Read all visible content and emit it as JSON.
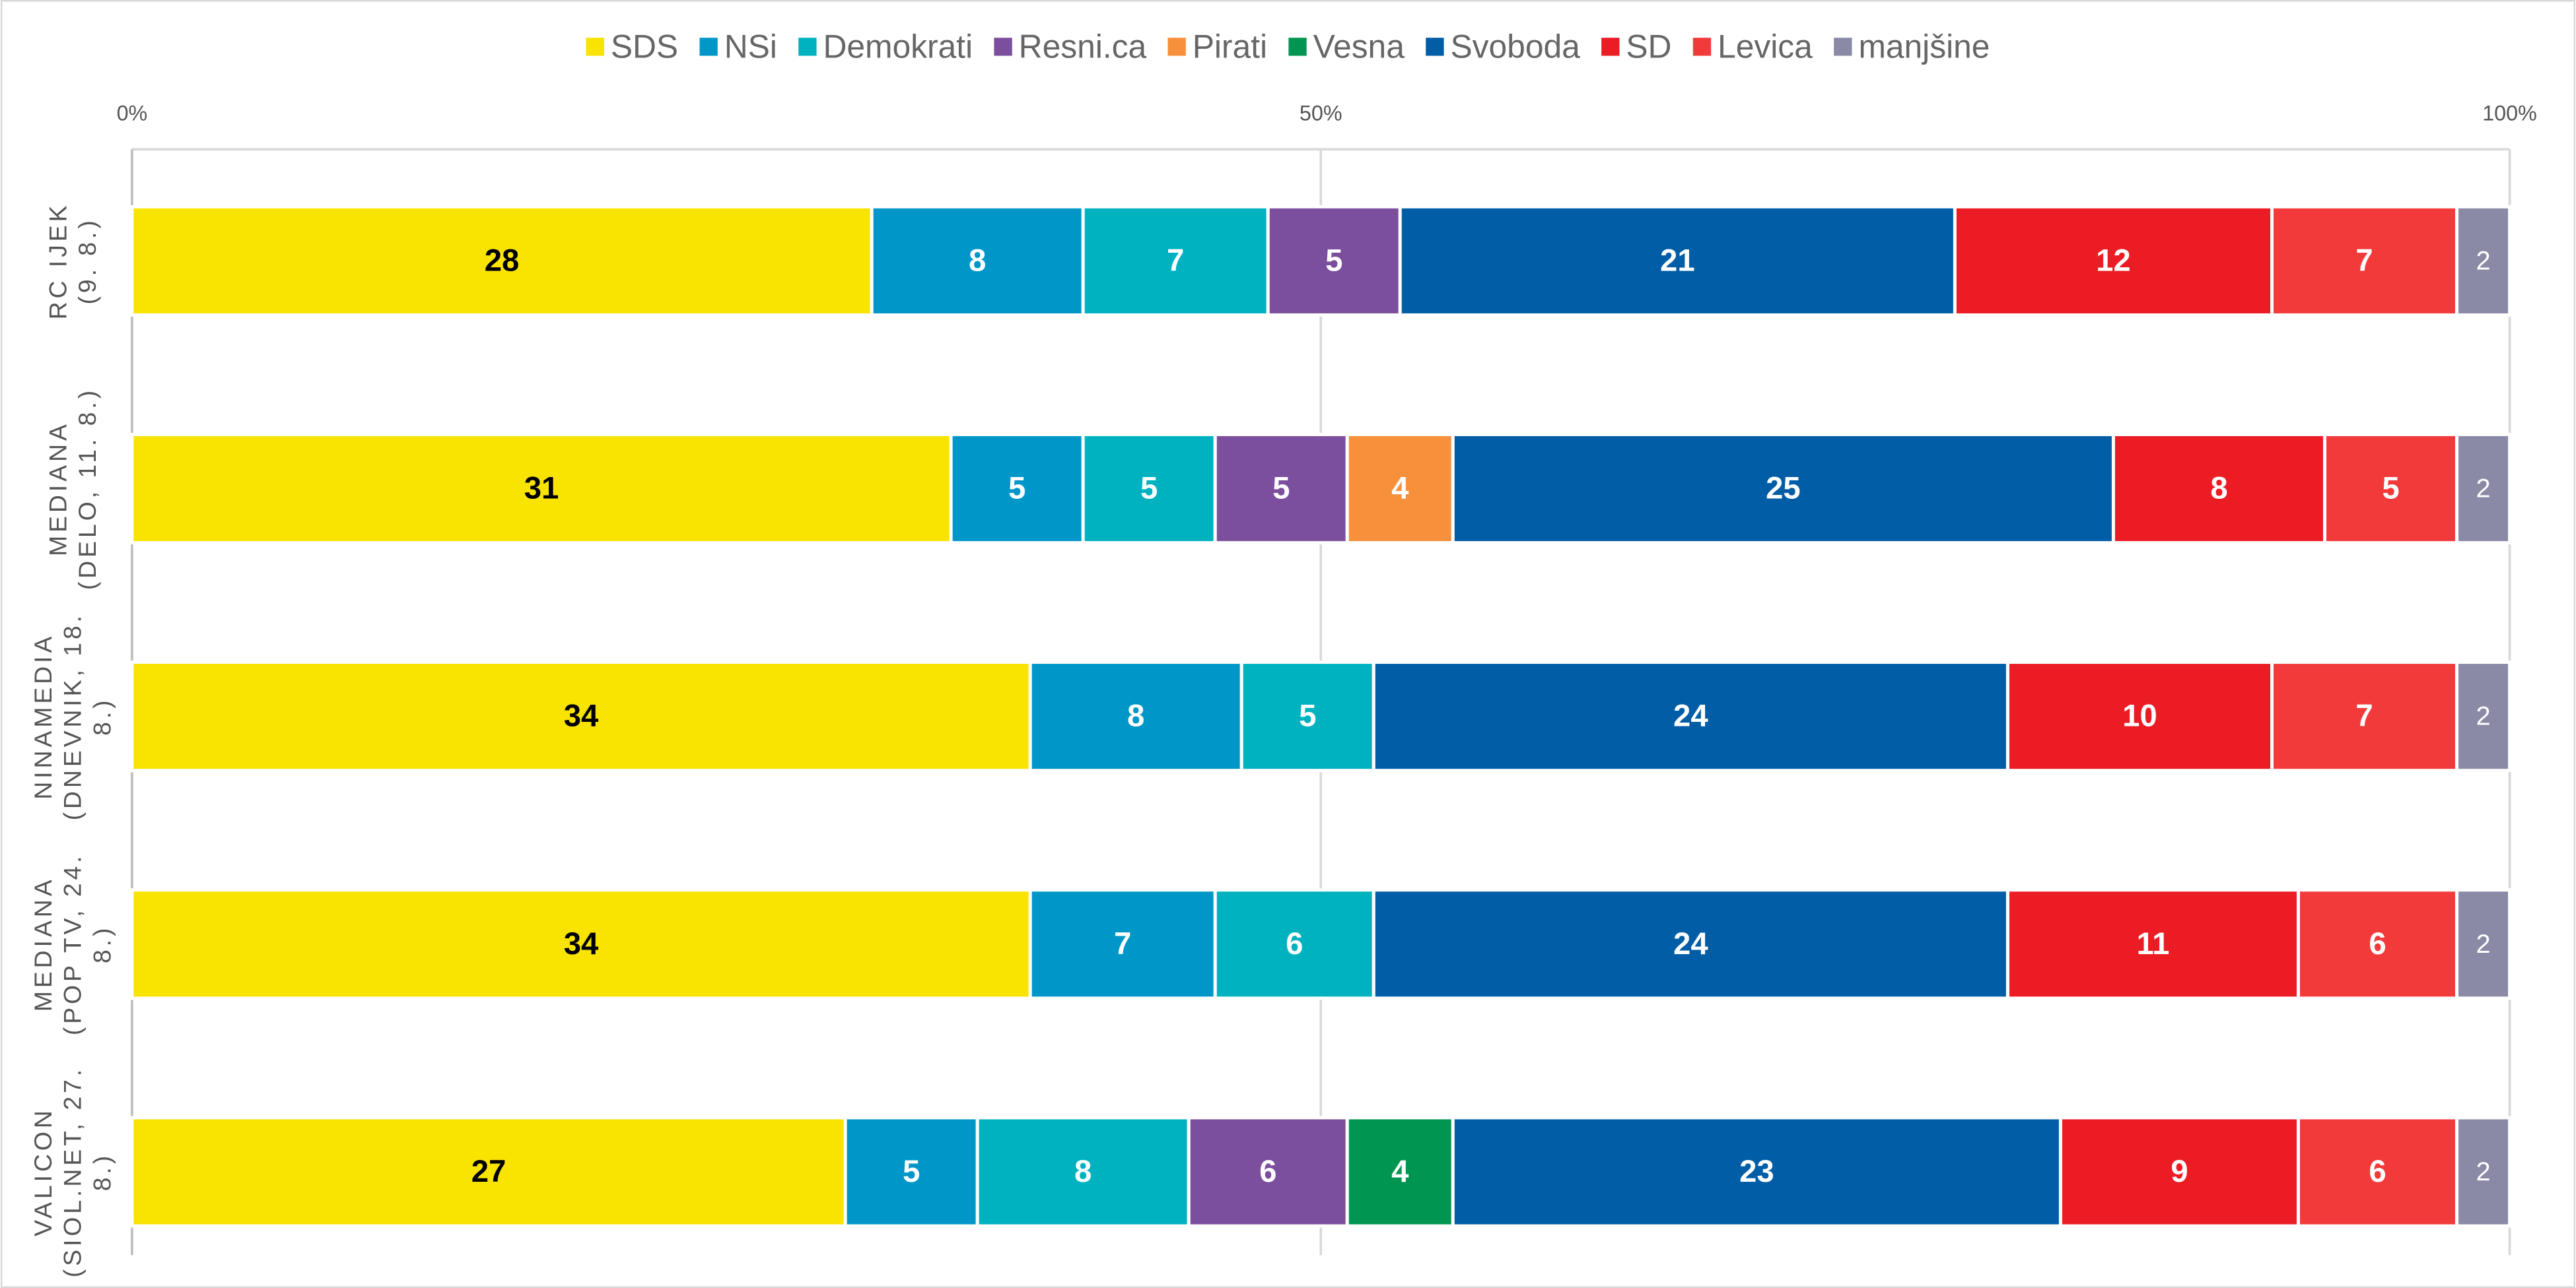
{
  "chart_data": {
    "type": "bar",
    "orientation": "horizontal",
    "stacked": "percent",
    "categories": [
      [
        "RC IJEK",
        "(9. 8.)"
      ],
      [
        "MEDIANA",
        "(DELO, 11. 8.)"
      ],
      [
        "NINAMEDIA",
        "(DNEVNIK, 18.",
        "8.)"
      ],
      [
        "MEDIANA",
        "(POP TV, 24.",
        "8.)"
      ],
      [
        "VALICON",
        "(SIOL.NET, 27.",
        "8.)"
      ]
    ],
    "series": [
      {
        "name": "SDS",
        "color": "#f9e300",
        "values": [
          28,
          31,
          34,
          34,
          27
        ]
      },
      {
        "name": "NSi",
        "color": "#0097c8",
        "values": [
          8,
          5,
          8,
          7,
          5
        ]
      },
      {
        "name": "Demokrati",
        "color": "#00b2c0",
        "values": [
          7,
          5,
          5,
          6,
          8
        ]
      },
      {
        "name": "Resni.ca",
        "color": "#7c4f9e",
        "values": [
          5,
          5,
          null,
          null,
          6
        ]
      },
      {
        "name": "Pirati",
        "color": "#f7903a",
        "values": [
          null,
          4,
          null,
          null,
          null
        ]
      },
      {
        "name": "Vesna",
        "color": "#009550",
        "values": [
          null,
          null,
          null,
          null,
          4
        ]
      },
      {
        "name": "Svoboda",
        "color": "#005da6",
        "values": [
          21,
          25,
          24,
          24,
          23
        ]
      },
      {
        "name": "SD",
        "color": "#ec1c24",
        "values": [
          12,
          8,
          10,
          11,
          9
        ]
      },
      {
        "name": "Levica",
        "color": "#f33a3a",
        "values": [
          7,
          5,
          7,
          6,
          6
        ]
      },
      {
        "name": "manjšine",
        "color": "#8a8aa6",
        "values": [
          2,
          2,
          2,
          2,
          2
        ]
      }
    ],
    "xlim": [
      0,
      100
    ],
    "xticks": [
      {
        "value": 0,
        "label": "0%"
      },
      {
        "value": 50,
        "label": "50%"
      },
      {
        "value": 100,
        "label": "100%"
      }
    ],
    "grid": true,
    "legend": "top"
  }
}
